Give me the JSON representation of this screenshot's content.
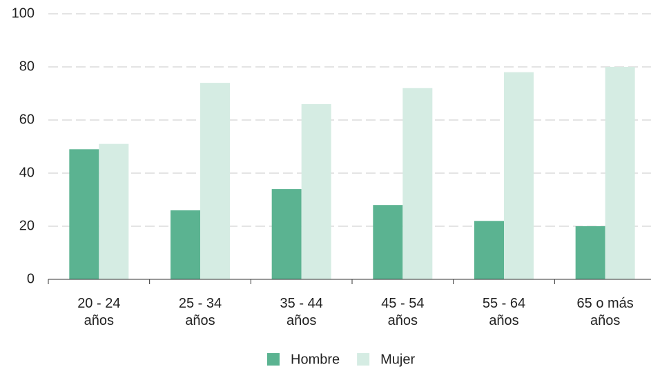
{
  "chart_data": {
    "type": "bar",
    "categories": [
      "20 - 24\naños",
      "25 - 34\naños",
      "35 - 44\naños",
      "45 - 54\naños",
      "55 - 64\naños",
      "65 o más\naños"
    ],
    "series": [
      {
        "name": "Hombre",
        "color": "#5bb391",
        "values": [
          49,
          26,
          34,
          28,
          22,
          20
        ]
      },
      {
        "name": "Mujer",
        "color": "#d5ece3",
        "values": [
          51,
          74,
          66,
          72,
          78,
          80
        ]
      }
    ],
    "ylim": [
      0,
      100
    ],
    "yticks": [
      0,
      20,
      40,
      60,
      80,
      100
    ],
    "grid": true,
    "legend": "bottom"
  }
}
